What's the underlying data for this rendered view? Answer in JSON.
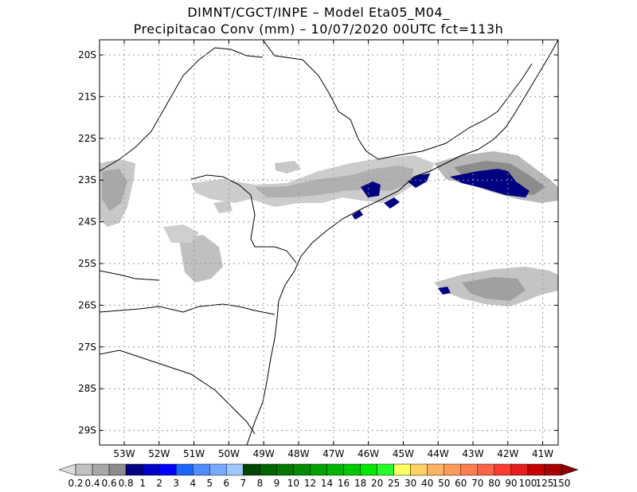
{
  "header": {
    "line1": "DIMNT/CGCT/INPE –  Model Eta05_M04_",
    "line2": "Precipitacao Conv (mm) – 10/07/2020 00UTC fct=113h"
  },
  "axes": {
    "lat_labels": [
      "20S",
      "21S",
      "22S",
      "23S",
      "24S",
      "25S",
      "26S",
      "27S",
      "28S",
      "29S"
    ],
    "lon_labels": [
      "53W",
      "52W",
      "51W",
      "50W",
      "49W",
      "48W",
      "47W",
      "46W",
      "45W",
      "44W",
      "43W",
      "42W",
      "41W"
    ]
  },
  "colorbar": {
    "labels": [
      "0.2",
      "0.4",
      "0.6",
      "0.8",
      "1",
      "2",
      "3",
      "4",
      "5",
      "6",
      "7",
      "8",
      "9",
      "10",
      "12",
      "14",
      "16",
      "18",
      "20",
      "25",
      "30",
      "40",
      "50",
      "60",
      "70",
      "80",
      "90",
      "100",
      "125",
      "150"
    ],
    "colors": [
      "#dcdcdc",
      "#c0c0c0",
      "#a8a8a8",
      "#8c8c8c",
      "#000082",
      "#0000c8",
      "#0000ff",
      "#1e64ff",
      "#4e8cff",
      "#78aaff",
      "#a0c8ff",
      "#004600",
      "#006400",
      "#007800",
      "#008c00",
      "#00a000",
      "#00b400",
      "#00c800",
      "#00e600",
      "#28ff28",
      "#ffff64",
      "#ffd264",
      "#ffb464",
      "#ff9b5a",
      "#ff7d50",
      "#ff6446",
      "#ff3c32",
      "#e61e1e",
      "#c80000",
      "#aa0000",
      "#8c0000"
    ]
  },
  "precip_colors": {
    "light": "#d2d2d2",
    "medium": "#b4b4b4",
    "dark": "#8c8c8c",
    "heavy": "#000082"
  }
}
